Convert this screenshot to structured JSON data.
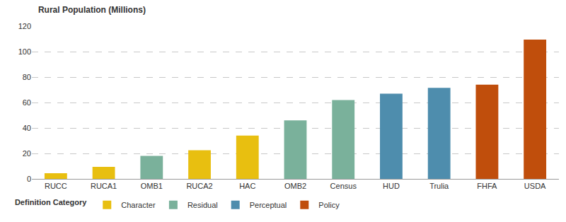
{
  "chart_data": {
    "type": "bar",
    "title": "Rural Population (Millions)",
    "legend_title": "Definition Category",
    "categories": [
      "RUCC",
      "RUCA1",
      "OMB1",
      "RUCA2",
      "HAC",
      "OMB2",
      "Census",
      "HUD",
      "Trulia",
      "FHFA",
      "USDA"
    ],
    "series": [
      {
        "name": "Character",
        "color": "#E8BF10",
        "values": [
          4.5,
          9.5,
          null,
          22.5,
          34,
          null,
          null,
          null,
          null,
          null,
          null
        ]
      },
      {
        "name": "Residual",
        "color": "#7AB19B",
        "values": [
          null,
          null,
          18,
          null,
          null,
          46,
          62,
          null,
          null,
          null,
          null
        ]
      },
      {
        "name": "Perceptual",
        "color": "#4E8DAD",
        "values": [
          null,
          null,
          null,
          null,
          null,
          null,
          null,
          67,
          71.5,
          null,
          null
        ]
      },
      {
        "name": "Policy",
        "color": "#C04E0C",
        "values": [
          null,
          null,
          null,
          null,
          null,
          null,
          null,
          null,
          null,
          74,
          109.5
        ]
      }
    ],
    "ylim": [
      0,
      120
    ],
    "yticks": [
      0,
      20,
      40,
      60,
      80,
      100,
      120
    ],
    "grid": true,
    "legend": "bottom",
    "stacked": false
  }
}
